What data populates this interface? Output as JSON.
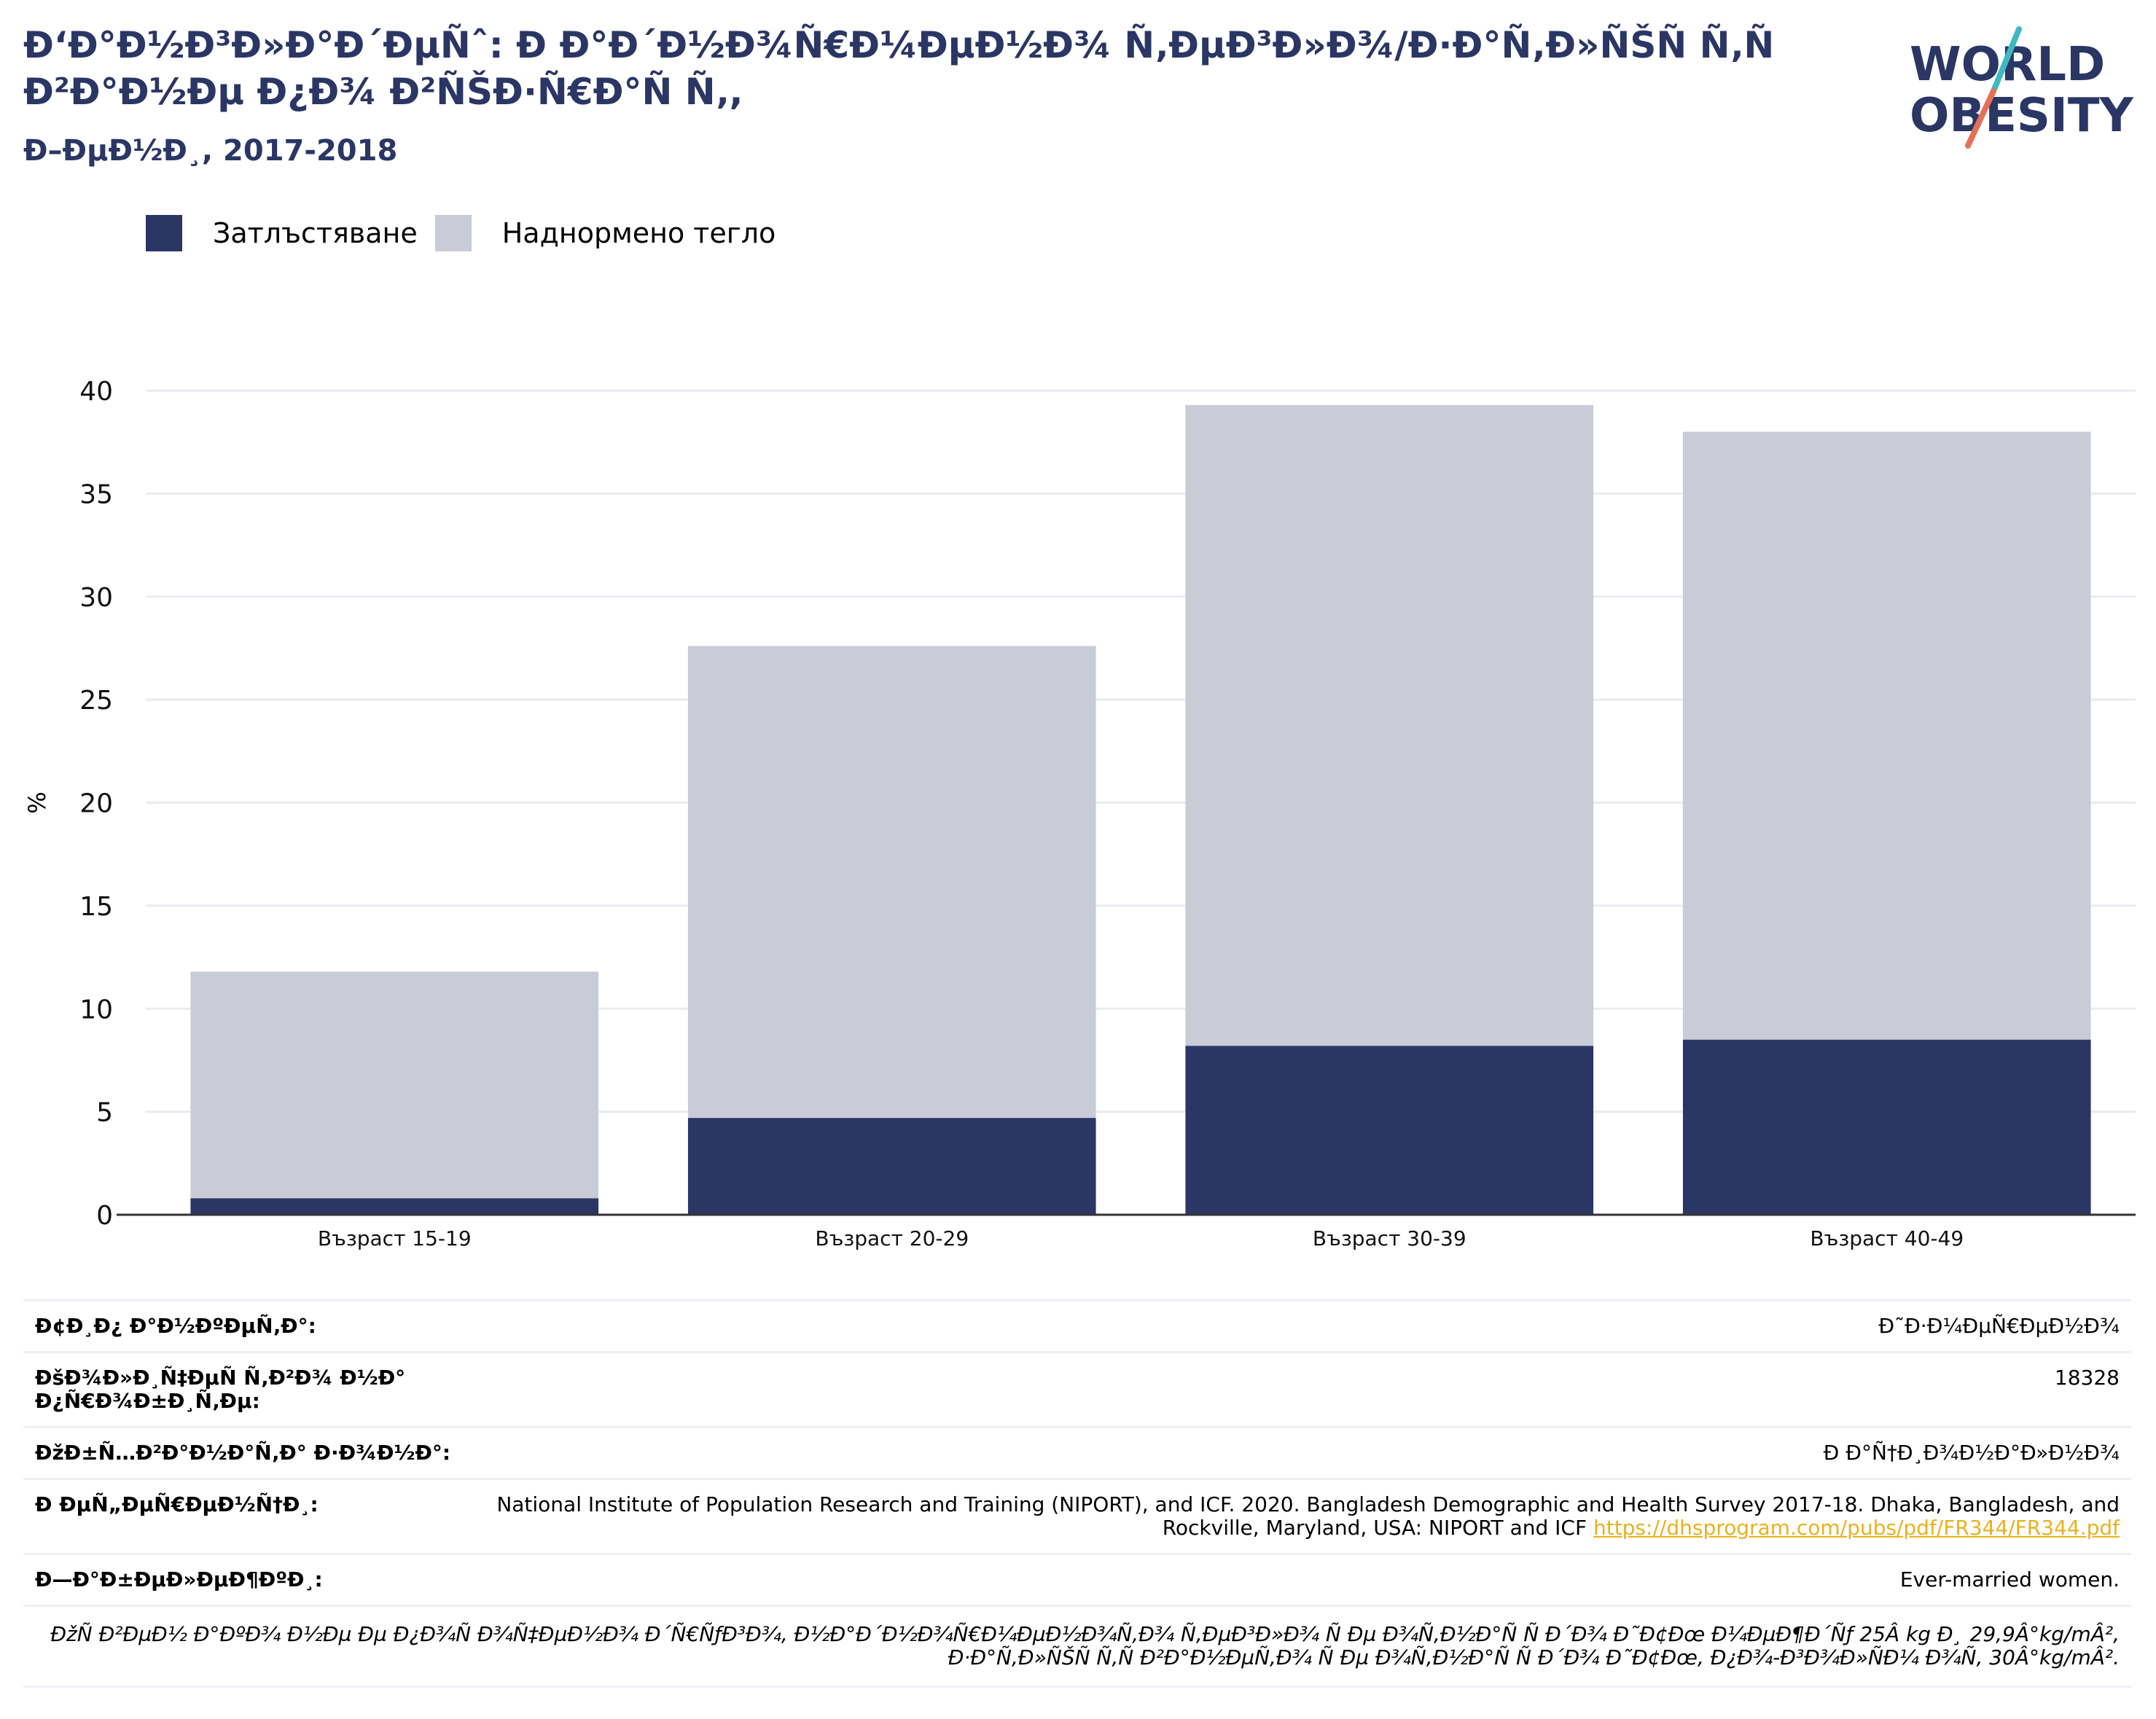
{
  "header": {
    "title": "Ð‘Ð°Ð½Ð³Ð»Ð°Ð´ÐµÑˆ: Ð Ð°Ð´Ð½Ð¾Ñ€Ð¼ÐµÐ½Ð¾ Ñ‚ÐµÐ³Ð»Ð¾/Ð·Ð°Ñ‚Ð»ÑŠÑ Ñ‚Ñ Ð²Ð°Ð½Ðµ Ð¿Ð¾ Ð²ÑŠÐ·Ñ€Ð°Ñ Ñ‚, ",
    "subtitle": "Ð–ÐµÐ½Ð¸, 2017-2018"
  },
  "logo": {
    "line1": "WORLD",
    "line2": "OBESITY"
  },
  "legend": [
    {
      "label": "Затлъстяване",
      "color": "#2a3664"
    },
    {
      "label": "Наднормено тегло",
      "color": "#c9cbd6"
    }
  ],
  "chart_data": {
    "type": "bar",
    "stacked": true,
    "categories": [
      "Възраст 15-19",
      "Възраст 20-29",
      "Възраст 30-39",
      "Възраст 40-49"
    ],
    "series": [
      {
        "name": "Затлъстяване",
        "values": [
          0.8,
          4.7,
          8.2,
          8.5
        ],
        "color": "#2a3664"
      },
      {
        "name": "Наднормено тегло",
        "values": [
          11.0,
          22.9,
          31.1,
          29.5
        ],
        "color": "#c9cbd6"
      }
    ],
    "ylabel": "%",
    "ylim": [
      0,
      40
    ],
    "yticks": [
      0,
      5,
      10,
      15,
      20,
      25,
      30,
      35,
      40
    ],
    "grid": true
  },
  "meta": {
    "rows": [
      {
        "key": "Ð¢Ð¸Ð¿ Ð°Ð½ÐºÐµÑ‚Ð°:",
        "value": "Ð˜Ð·Ð¼ÐµÑ€ÐµÐ½Ð¾"
      },
      {
        "key": "ÐšÐ¾Ð»Ð¸Ñ‡ÐµÑ Ñ‚Ð²Ð¾ Ð½Ð° Ð¿Ñ€Ð¾Ð±Ð¸Ñ‚Ðµ:",
        "value": "18328"
      },
      {
        "key": "ÐžÐ±Ñ…Ð²Ð°Ð½Ð°Ñ‚Ð° Ð·Ð¾Ð½Ð°:",
        "value": "Ð Ð°Ñ†Ð¸Ð¾Ð½Ð°Ð»Ð½Ð¾"
      }
    ],
    "reference_key": "Ð ÐµÑ„ÐµÑ€ÐµÐ½Ñ†Ð¸:",
    "reference_text": "National Institute of Population Research and Training (NIPORT), and ICF. 2020. Bangladesh Demographic and Health Survey 2017-18. Dhaka, Bangladesh, and Rockville, Maryland, USA: NIPORT and ICF",
    "reference_link": "https://dhsprogram.com/pubs/pdf/FR344/FR344.pdf",
    "notes_key": "Ð—Ð°Ð±ÐµÐ»ÐµÐ¶ÐºÐ¸:",
    "notes_value": "Ever-married women.",
    "footnote": "ÐžÑ Ð²ÐµÐ½ Ð°ÐºÐ¾ Ð½Ðµ Ðµ Ð¿Ð¾Ñ Ð¾Ñ‡ÐµÐ½Ð¾ Ð´Ñ€ÑƒÐ³Ð¾, Ð½Ð°Ð´Ð½Ð¾Ñ€Ð¼ÐµÐ½Ð¾Ñ‚Ð¾ Ñ‚ÐµÐ³Ð»Ð¾ Ñ Ðµ Ð¾Ñ‚Ð½Ð°Ñ Ñ  Ð´Ð¾ Ð˜Ð¢Ðœ Ð¼ÐµÐ¶Ð´Ñƒ 25Â kg Ð¸ 29,9Â°kg/mÂ², Ð·Ð°Ñ‚Ð»ÑŠÑ Ñ‚Ñ Ð²Ð°Ð½ÐµÑ‚Ð¾ Ñ Ðµ Ð¾Ñ‚Ð½Ð°Ñ Ñ  Ð´Ð¾ Ð˜Ð¢Ðœ, Ð¿Ð¾-Ð³Ð¾Ð»ÑÐ¼ Ð¾Ñ‚ 30Â°kg/mÂ²."
  }
}
